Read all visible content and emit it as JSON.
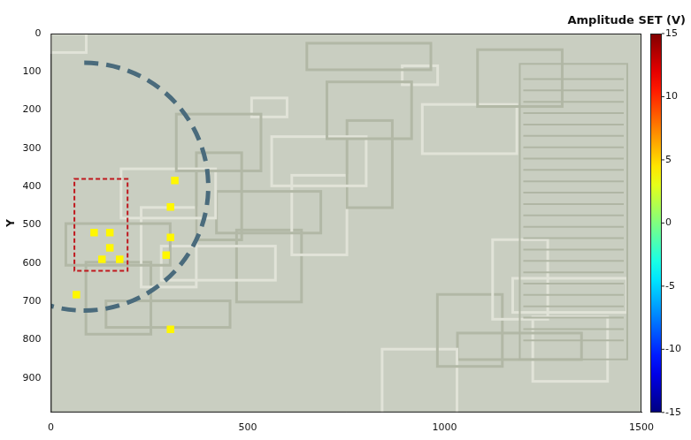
{
  "chart_data": {
    "type": "scatter",
    "x": [
      110,
      150,
      150,
      130,
      175,
      304,
      315,
      304,
      293,
      65,
      304
    ],
    "y": [
      520,
      520,
      560,
      590,
      590,
      453,
      384,
      533,
      579,
      682,
      773
    ],
    "amplitude": [
      4,
      4,
      4,
      4,
      4,
      4,
      4,
      4,
      4,
      4,
      4
    ],
    "marker": "square",
    "xlim": [
      0,
      1500
    ],
    "xticks": [
      0,
      500,
      1000,
      1500
    ],
    "ylim": [
      990,
      0
    ],
    "yticks": [
      0,
      100,
      200,
      300,
      400,
      500,
      600,
      700,
      800,
      900
    ],
    "y_label": "Y",
    "grid": false,
    "colorbar": {
      "title": "Amplitude SET (V)",
      "range": [
        -15,
        15
      ],
      "ticks": [
        -15,
        -10,
        -5,
        0,
        5,
        10,
        15
      ]
    }
  }
}
